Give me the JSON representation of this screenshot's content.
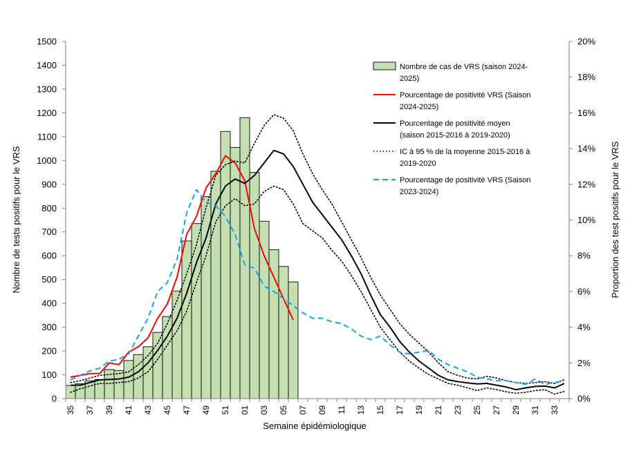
{
  "chart_data": {
    "type": "bar+line",
    "xlabel": "Semaine épidémiologique",
    "ylabel_left": "Nombre de tests positifs pour le VRS",
    "ylabel_right": "Proportion des test positifs pour le VRS",
    "ylim_left": [
      0,
      1500
    ],
    "ylim_right": [
      0,
      20
    ],
    "yticks_left": [
      "0",
      "100",
      "200",
      "300",
      "400",
      "500",
      "600",
      "700",
      "800",
      "900",
      "1000",
      "1100",
      "1200",
      "1300",
      "1400",
      "1500"
    ],
    "yticks_right": [
      "0%",
      "2%",
      "4%",
      "6%",
      "8%",
      "10%",
      "12%",
      "14%",
      "16%",
      "18%",
      "20%"
    ],
    "weeks": [
      "35",
      "36",
      "37",
      "38",
      "39",
      "40",
      "41",
      "42",
      "43",
      "44",
      "45",
      "46",
      "47",
      "48",
      "49",
      "50",
      "51",
      "52",
      "01",
      "02",
      "03",
      "04",
      "05",
      "06",
      "07",
      "08",
      "09",
      "10",
      "11",
      "12",
      "13",
      "14",
      "15",
      "16",
      "17",
      "18",
      "19",
      "20",
      "21",
      "22",
      "23",
      "24",
      "25",
      "26",
      "27",
      "28",
      "29",
      "30",
      "31",
      "32",
      "33",
      "34"
    ],
    "xtick_labels": [
      "35",
      "37",
      "39",
      "41",
      "43",
      "45",
      "47",
      "49",
      "51",
      "01",
      "03",
      "05",
      "07",
      "09",
      "11",
      "13",
      "15",
      "17",
      "19",
      "21",
      "23",
      "25",
      "27",
      "29",
      "31",
      "33"
    ],
    "bars": {
      "name": "Nombre de cas de VRS (saison 2024-2025)",
      "values": [
        55,
        62,
        75,
        80,
        122,
        118,
        160,
        185,
        218,
        278,
        345,
        452,
        662,
        735,
        848,
        955,
        1122,
        1055,
        1180,
        950,
        745,
        625,
        555,
        490
      ]
    },
    "series": [
      {
        "name": "Pourcentage de positivité VRS (Saison 2024-2025)",
        "color": "#ff0000",
        "style": "solid",
        "values": [
          1.2,
          1.3,
          1.4,
          1.4,
          2.0,
          1.9,
          2.6,
          2.9,
          3.4,
          4.5,
          5.3,
          6.8,
          9.2,
          10.2,
          11.8,
          12.6,
          13.6,
          13.2,
          12.2,
          9.5,
          8.0,
          6.8,
          5.6,
          4.4
        ]
      },
      {
        "name": "Pourcentage de positivité moyen (saison 2015-2016 à 2019-2020)",
        "color": "#000000",
        "style": "solid",
        "values": [
          0.75,
          0.75,
          0.9,
          1.05,
          1.07,
          1.1,
          1.2,
          1.5,
          2.0,
          2.7,
          3.5,
          4.5,
          5.9,
          7.6,
          9.0,
          10.9,
          11.9,
          12.3,
          12.05,
          12.5,
          13.2,
          13.9,
          13.7,
          13.0,
          12.0,
          11.0,
          10.3,
          9.6,
          8.9,
          8.0,
          7.0,
          5.8,
          4.7,
          4.0,
          3.2,
          2.6,
          2.1,
          1.7,
          1.3,
          1.05,
          0.95,
          0.88,
          0.82,
          0.85,
          0.75,
          0.65,
          0.5,
          0.6,
          0.68,
          0.7,
          0.6,
          0.85
        ]
      },
      {
        "name": "IC à 95 % de la moyenne 2015-2016 à 2019-2020 (haut)",
        "color": "#000000",
        "style": "dotted",
        "values": [
          0.9,
          1.0,
          1.15,
          1.3,
          1.35,
          1.4,
          1.5,
          1.9,
          2.4,
          3.1,
          4.2,
          5.5,
          7.0,
          8.6,
          10.7,
          12.5,
          13.1,
          13.3,
          13.2,
          14.3,
          15.3,
          15.9,
          15.7,
          15.0,
          13.7,
          12.6,
          11.7,
          10.9,
          9.9,
          8.9,
          7.9,
          6.8,
          5.8,
          5.0,
          4.2,
          3.6,
          3.1,
          2.6,
          2.0,
          1.5,
          1.3,
          1.15,
          1.1,
          1.25,
          1.15,
          1.0,
          0.9,
          0.85,
          0.9,
          0.95,
          0.85,
          1.05
        ]
      },
      {
        "name": "IC à 95 % de la moyenne 2015-2016 à 2019-2020 (bas)",
        "color": "#000000",
        "style": "dotted",
        "values": [
          0.35,
          0.55,
          0.7,
          0.85,
          0.85,
          0.9,
          0.95,
          1.15,
          1.5,
          2.2,
          3.0,
          3.8,
          4.9,
          6.5,
          8.0,
          9.9,
          10.8,
          11.2,
          10.8,
          10.9,
          11.6,
          11.9,
          11.7,
          10.9,
          9.8,
          9.4,
          9.0,
          8.3,
          7.7,
          6.9,
          6.0,
          5.0,
          4.0,
          3.3,
          2.6,
          2.1,
          1.7,
          1.35,
          1.1,
          0.85,
          0.75,
          0.6,
          0.45,
          0.6,
          0.5,
          0.38,
          0.3,
          0.35,
          0.45,
          0.5,
          0.25,
          0.4
        ]
      },
      {
        "name": "Pourcentage de positivité VRS (Saison 2023-2024)",
        "color": "#1ea0e6",
        "style": "dashed",
        "values": [
          1.05,
          1.3,
          1.55,
          1.7,
          2.1,
          2.2,
          2.5,
          3.5,
          4.5,
          6.0,
          6.5,
          7.8,
          10.4,
          11.7,
          11.0,
          10.8,
          10.2,
          9.2,
          7.5,
          7.3,
          6.3,
          6.0,
          5.6,
          5.2,
          4.8,
          4.5,
          4.5,
          4.3,
          4.2,
          3.9,
          3.5,
          3.3,
          3.5,
          3.0,
          2.6,
          2.5,
          2.6,
          2.7,
          2.2,
          1.9,
          1.7,
          1.5,
          1.2,
          1.1,
          1.0,
          1.0,
          0.9,
          0.8,
          1.1,
          0.8,
          0.9,
          1.0
        ]
      }
    ],
    "legend": {
      "placement": "top-right",
      "items": [
        {
          "type": "bar",
          "color": "#c4e0b2",
          "lines": [
            "Nombre de cas de VRS (saison 2024-",
            "2025)"
          ]
        },
        {
          "type": "line",
          "color": "#ff0000",
          "dash": "solid",
          "lines": [
            "Pourcentage de positivité VRS (Saison",
            "2024-2025)"
          ]
        },
        {
          "type": "line",
          "color": "#000000",
          "dash": "solid",
          "lines": [
            "Pourcentage de positivité moyen",
            "(saison 2015-2016 à 2019-2020)"
          ]
        },
        {
          "type": "line",
          "color": "#000000",
          "dash": "dotted",
          "lines": [
            "IC à 95 % de la moyenne 2015-2016 à",
            "2019-2020"
          ]
        },
        {
          "type": "line",
          "color": "#1ea0e6",
          "dash": "dashed",
          "lines": [
            "Pourcentage de positivité VRS (Saison",
            "2023-2024)"
          ]
        }
      ]
    }
  }
}
